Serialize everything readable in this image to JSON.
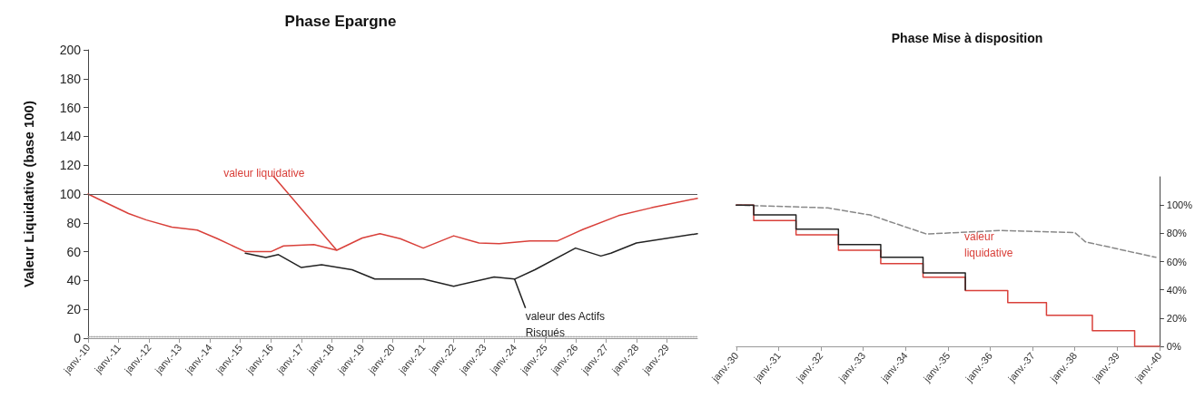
{
  "chart_data": [
    {
      "type": "line",
      "title": "Phase Epargne",
      "ylabel": "Valeur Liquidative (base 100)",
      "xlim": [
        "2010-01",
        "2030-01"
      ],
      "xticks": [
        {
          "value": "2010-01",
          "label": "janv.-10"
        },
        {
          "value": "2011-01",
          "label": "janv.-11"
        },
        {
          "value": "2012-01",
          "label": "janv.-12"
        },
        {
          "value": "2013-01",
          "label": "janv.-13"
        },
        {
          "value": "2014-01",
          "label": "janv.-14"
        },
        {
          "value": "2015-01",
          "label": "janv.-15"
        },
        {
          "value": "2016-01",
          "label": "janv.-16"
        },
        {
          "value": "2017-01",
          "label": "janv.-17"
        },
        {
          "value": "2018-01",
          "label": "janv.-18"
        },
        {
          "value": "2019-01",
          "label": "janv.-19"
        },
        {
          "value": "2020-01",
          "label": "janv.-20"
        },
        {
          "value": "2021-01",
          "label": "janv.-21"
        },
        {
          "value": "2022-01",
          "label": "janv.-22"
        },
        {
          "value": "2023-01",
          "label": "janv.-23"
        },
        {
          "value": "2024-01",
          "label": "janv.-24"
        },
        {
          "value": "2025-01",
          "label": "janv.-25"
        },
        {
          "value": "2026-01",
          "label": "janv.-26"
        },
        {
          "value": "2027-01",
          "label": "janv.-27"
        },
        {
          "value": "2028-01",
          "label": "janv.-28"
        },
        {
          "value": "2029-01",
          "label": "janv.-29"
        }
      ],
      "ylim": [
        0,
        200
      ],
      "yticks": [
        0,
        20,
        40,
        60,
        80,
        100,
        120,
        140,
        160,
        180,
        200
      ],
      "grid": false,
      "marker": "none",
      "ref_lines": [
        {
          "axis": "y",
          "value": 100,
          "color": "#555555"
        }
      ],
      "series": [
        {
          "color": "#aaaaaa",
          "line_style": "dotted",
          "x": [
            "2010-01",
            "2030-01"
          ],
          "values": [
            1,
            1
          ]
        },
        {
          "color": "#222222",
          "line_style": "solid",
          "x": [
            "2015-03",
            "2015-11",
            "2016-04",
            "2017-01",
            "2017-09",
            "2018-09",
            "2019-06",
            "2021-01",
            "2022-01",
            "2023-05",
            "2024-01",
            "2024-09",
            "2026-01",
            "2026-11",
            "2027-03",
            "2028-01",
            "2030-01"
          ],
          "values": [
            59,
            56,
            58,
            49,
            51,
            47.5,
            41,
            41,
            36,
            42.5,
            41,
            47.5,
            62.5,
            57,
            59,
            66,
            72.5
          ]
        },
        {
          "color": "#d9403a",
          "line_style": "solid",
          "x": [
            "2010-01",
            "2010-08",
            "2011-05",
            "2011-12",
            "2012-10",
            "2013-08",
            "2014-04",
            "2015-03",
            "2016-01",
            "2016-06",
            "2017-06",
            "2018-03",
            "2019-01",
            "2019-08",
            "2020-04",
            "2021-01",
            "2022-01",
            "2022-11",
            "2023-07",
            "2024-07",
            "2025-06",
            "2026-04",
            "2027-06",
            "2028-07",
            "2030-01"
          ],
          "values": [
            100,
            94,
            86.5,
            82,
            77,
            75,
            69,
            60,
            60,
            64,
            65,
            61,
            69.5,
            72.5,
            69,
            62.5,
            71,
            66,
            65.5,
            67.5,
            67.5,
            75.5,
            85,
            90.5,
            97
          ]
        }
      ],
      "annotations": [
        {
          "text": "valeur liquidative",
          "x": "2018-03",
          "y": 61
        },
        {
          "text": "valeur des Actifs Risqués",
          "x": "2024-01",
          "y": 41
        }
      ]
    },
    {
      "type": "step",
      "title": "Phase Mise à disposition",
      "xlim": [
        "2030-01",
        "2040-01"
      ],
      "xticks": [
        {
          "value": "2030-01",
          "label": "janv.-30"
        },
        {
          "value": "2031-01",
          "label": "janv.-31"
        },
        {
          "value": "2032-01",
          "label": "janv.-32"
        },
        {
          "value": "2033-01",
          "label": "janv.-33"
        },
        {
          "value": "2034-01",
          "label": "janv.-34"
        },
        {
          "value": "2035-01",
          "label": "janv.-35"
        },
        {
          "value": "2036-01",
          "label": "janv.-36"
        },
        {
          "value": "2037-01",
          "label": "janv.-37"
        },
        {
          "value": "2038-01",
          "label": "janv.-38"
        },
        {
          "value": "2039-01",
          "label": "janv.-39"
        },
        {
          "value": "2040-01",
          "label": "janv.-40"
        }
      ],
      "ylim": [
        0,
        120
      ],
      "yticks": [
        {
          "value": 0,
          "label": "0%"
        },
        {
          "value": 20,
          "label": "20%"
        },
        {
          "value": 40,
          "label": "40%"
        },
        {
          "value": 60,
          "label": "60%"
        },
        {
          "value": 80,
          "label": "80%"
        },
        {
          "value": 100,
          "label": "100%"
        }
      ],
      "grid": false,
      "marker": "none",
      "series": [
        {
          "type": "line",
          "color": "#888888",
          "line_style": "dashed",
          "x": [
            "2030-01",
            "2032-03",
            "2033-03",
            "2034-07",
            "2036-04",
            "2038-01",
            "2038-04",
            "2039-12"
          ],
          "values": [
            100,
            98,
            93,
            79.5,
            82,
            80.5,
            74,
            63
          ]
        },
        {
          "color": "#d9403a",
          "line_style": "solid",
          "x": [
            "2030-01",
            "2030-06",
            "2031-06",
            "2032-06",
            "2033-06",
            "2034-06",
            "2035-06",
            "2036-06",
            "2037-05",
            "2038-06",
            "2039-06",
            "2040-01"
          ],
          "values": [
            100,
            89,
            79,
            68,
            58.5,
            49,
            39.5,
            31,
            22,
            11,
            0,
            0
          ]
        },
        {
          "color": "#222222",
          "line_style": "solid",
          "x": [
            "2030-01",
            "2030-06",
            "2031-06",
            "2032-06",
            "2033-06",
            "2034-06",
            "2035-06"
          ],
          "values": [
            100,
            93,
            83,
            72,
            63,
            52,
            40
          ]
        }
      ],
      "annotations": [
        "valeur liquidative"
      ]
    }
  ]
}
